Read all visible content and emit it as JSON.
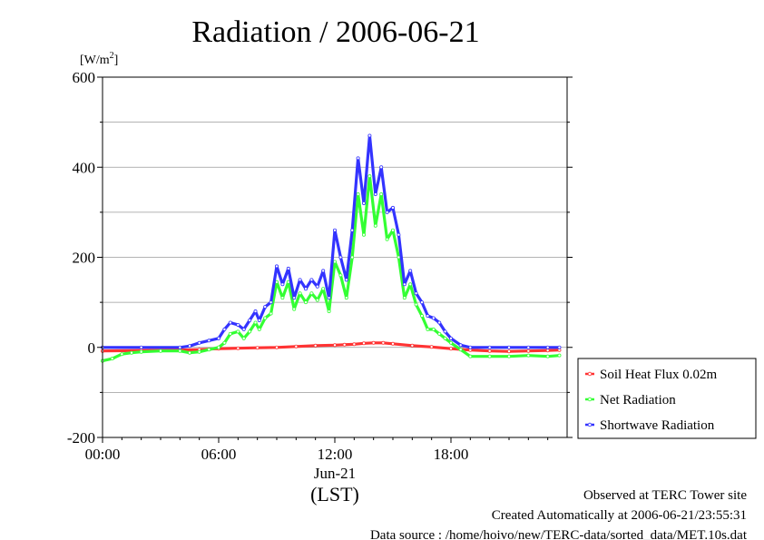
{
  "chart_data": {
    "type": "line",
    "title": "Radiation / 2006-06-21",
    "ylabel_unit": "[W/m",
    "ylabel_unit_sup": "2",
    "ylabel_unit_end": "]",
    "xlabel_date": "Jun-21",
    "xlabel": "(LST)",
    "ylim": [
      -200,
      600
    ],
    "yticks": [
      "-200",
      "0",
      "200",
      "400",
      "600"
    ],
    "xlim": [
      0,
      24
    ],
    "xticks": [
      "00:00",
      "06:00",
      "12:00",
      "18:00"
    ],
    "grid": "horizontal",
    "legend_position": "right",
    "series": [
      {
        "name": "Soil Heat Flux 0.02m",
        "color": "#ff3333",
        "x": [
          0,
          2,
          4,
          5,
          6,
          7,
          8,
          9,
          10,
          11,
          12,
          12.5,
          13,
          13.5,
          14,
          14.5,
          15,
          16,
          17,
          18,
          19,
          20,
          21,
          22,
          23,
          23.6
        ],
        "y": [
          -8,
          -7,
          -6,
          -5,
          -3,
          -2,
          -1,
          0,
          2,
          4,
          5,
          6,
          7,
          9,
          10,
          10,
          8,
          4,
          1,
          -3,
          -6,
          -8,
          -9,
          -8,
          -7,
          -6
        ]
      },
      {
        "name": "Net Radiation",
        "color": "#33ff33",
        "x": [
          0,
          0.5,
          1,
          1.5,
          2,
          3,
          4,
          4.5,
          5,
          5.5,
          6,
          6.3,
          6.6,
          7,
          7.3,
          7.6,
          7.9,
          8.1,
          8.4,
          8.7,
          9,
          9.3,
          9.6,
          9.9,
          10.2,
          10.5,
          10.8,
          11.1,
          11.4,
          11.7,
          12,
          12.3,
          12.6,
          12.9,
          13.2,
          13.5,
          13.8,
          14.1,
          14.4,
          14.7,
          15,
          15.3,
          15.6,
          15.9,
          16.2,
          16.5,
          16.8,
          17.1,
          17.4,
          17.7,
          18,
          18.5,
          19,
          20,
          21,
          22,
          23,
          23.6
        ],
        "y": [
          -30,
          -25,
          -15,
          -12,
          -10,
          -8,
          -8,
          -12,
          -10,
          -5,
          0,
          10,
          30,
          35,
          20,
          35,
          55,
          40,
          65,
          75,
          145,
          110,
          145,
          85,
          120,
          100,
          120,
          105,
          130,
          80,
          190,
          160,
          110,
          200,
          340,
          250,
          380,
          270,
          340,
          240,
          260,
          200,
          110,
          140,
          95,
          70,
          40,
          40,
          30,
          20,
          10,
          -5,
          -20,
          -20,
          -20,
          -18,
          -20,
          -18
        ]
      },
      {
        "name": "Shortwave Radiation",
        "color": "#3333ff",
        "x": [
          0,
          2,
          4,
          4.5,
          5,
          5.5,
          6,
          6.3,
          6.6,
          7,
          7.3,
          7.6,
          7.9,
          8.1,
          8.4,
          8.7,
          9,
          9.3,
          9.6,
          9.9,
          10.2,
          10.5,
          10.8,
          11.1,
          11.4,
          11.7,
          12,
          12.3,
          12.6,
          12.9,
          13.2,
          13.5,
          13.8,
          14.1,
          14.4,
          14.7,
          15,
          15.3,
          15.6,
          15.9,
          16.2,
          16.5,
          16.8,
          17.1,
          17.4,
          17.7,
          18,
          18.5,
          19,
          20,
          21,
          22,
          23,
          23.6
        ],
        "y": [
          0,
          0,
          0,
          3,
          10,
          15,
          20,
          40,
          55,
          50,
          40,
          60,
          80,
          60,
          90,
          100,
          180,
          140,
          175,
          110,
          150,
          130,
          150,
          135,
          170,
          110,
          260,
          200,
          150,
          260,
          420,
          320,
          470,
          340,
          400,
          300,
          310,
          250,
          140,
          170,
          120,
          100,
          70,
          65,
          55,
          35,
          20,
          5,
          0,
          0,
          0,
          0,
          0,
          0
        ]
      }
    ]
  },
  "footer": {
    "line1": "Observed at TERC Tower site",
    "line2": "Created Automatically at 2006-06-21/23:55:31",
    "line3": "Data source : /home/hoivo/new/TERC-data/sorted_data/MET.10s.dat"
  }
}
